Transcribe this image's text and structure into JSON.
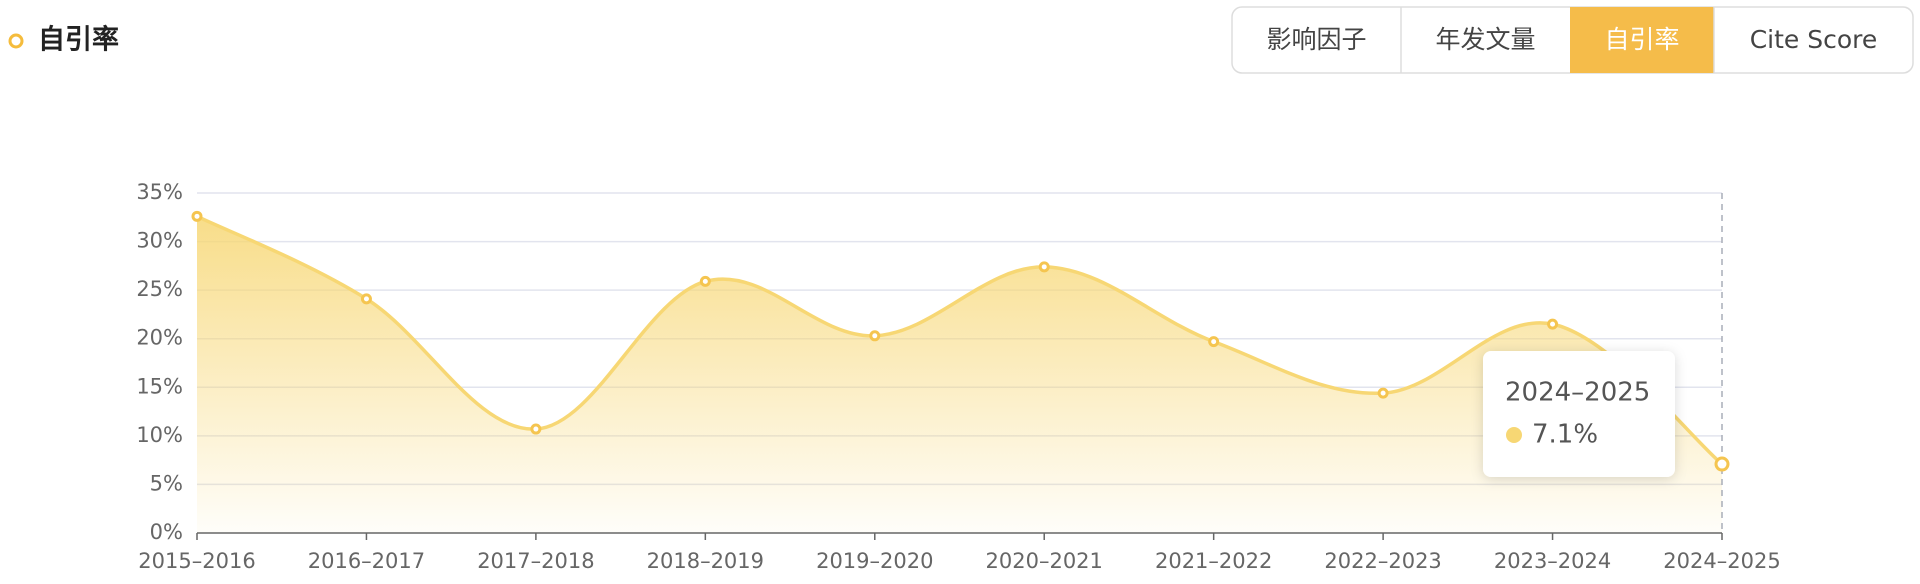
{
  "header": {
    "title": "自引率"
  },
  "tabs": {
    "items": [
      "影响因子",
      "年发文量",
      "自引率",
      "Cite Score"
    ],
    "active": 2
  },
  "chart_data": {
    "type": "line",
    "area": true,
    "color": "#f7d774",
    "categories": [
      "2015–2016",
      "2016–2017",
      "2017–2018",
      "2018–2019",
      "2019–2020",
      "2020–2021",
      "2021–2022",
      "2022–2023",
      "2023–2024",
      "2024–2025"
    ],
    "values": [
      32.6,
      24.1,
      10.7,
      25.9,
      20.3,
      27.4,
      19.7,
      14.4,
      21.5,
      7.1
    ],
    "ylim": [
      0,
      35
    ],
    "yticks": [
      {
        "value": 0,
        "label": "0%"
      },
      {
        "value": 5,
        "label": "5%"
      },
      {
        "value": 10,
        "label": "10%"
      },
      {
        "value": 15,
        "label": "15%"
      },
      {
        "value": 20,
        "label": "20%"
      },
      {
        "value": 25,
        "label": "25%"
      },
      {
        "value": 30,
        "label": "30%"
      },
      {
        "value": 35,
        "label": "35%"
      }
    ],
    "grid": true,
    "tooltip": {
      "title": "2024–2025",
      "label": "7.1%"
    }
  }
}
